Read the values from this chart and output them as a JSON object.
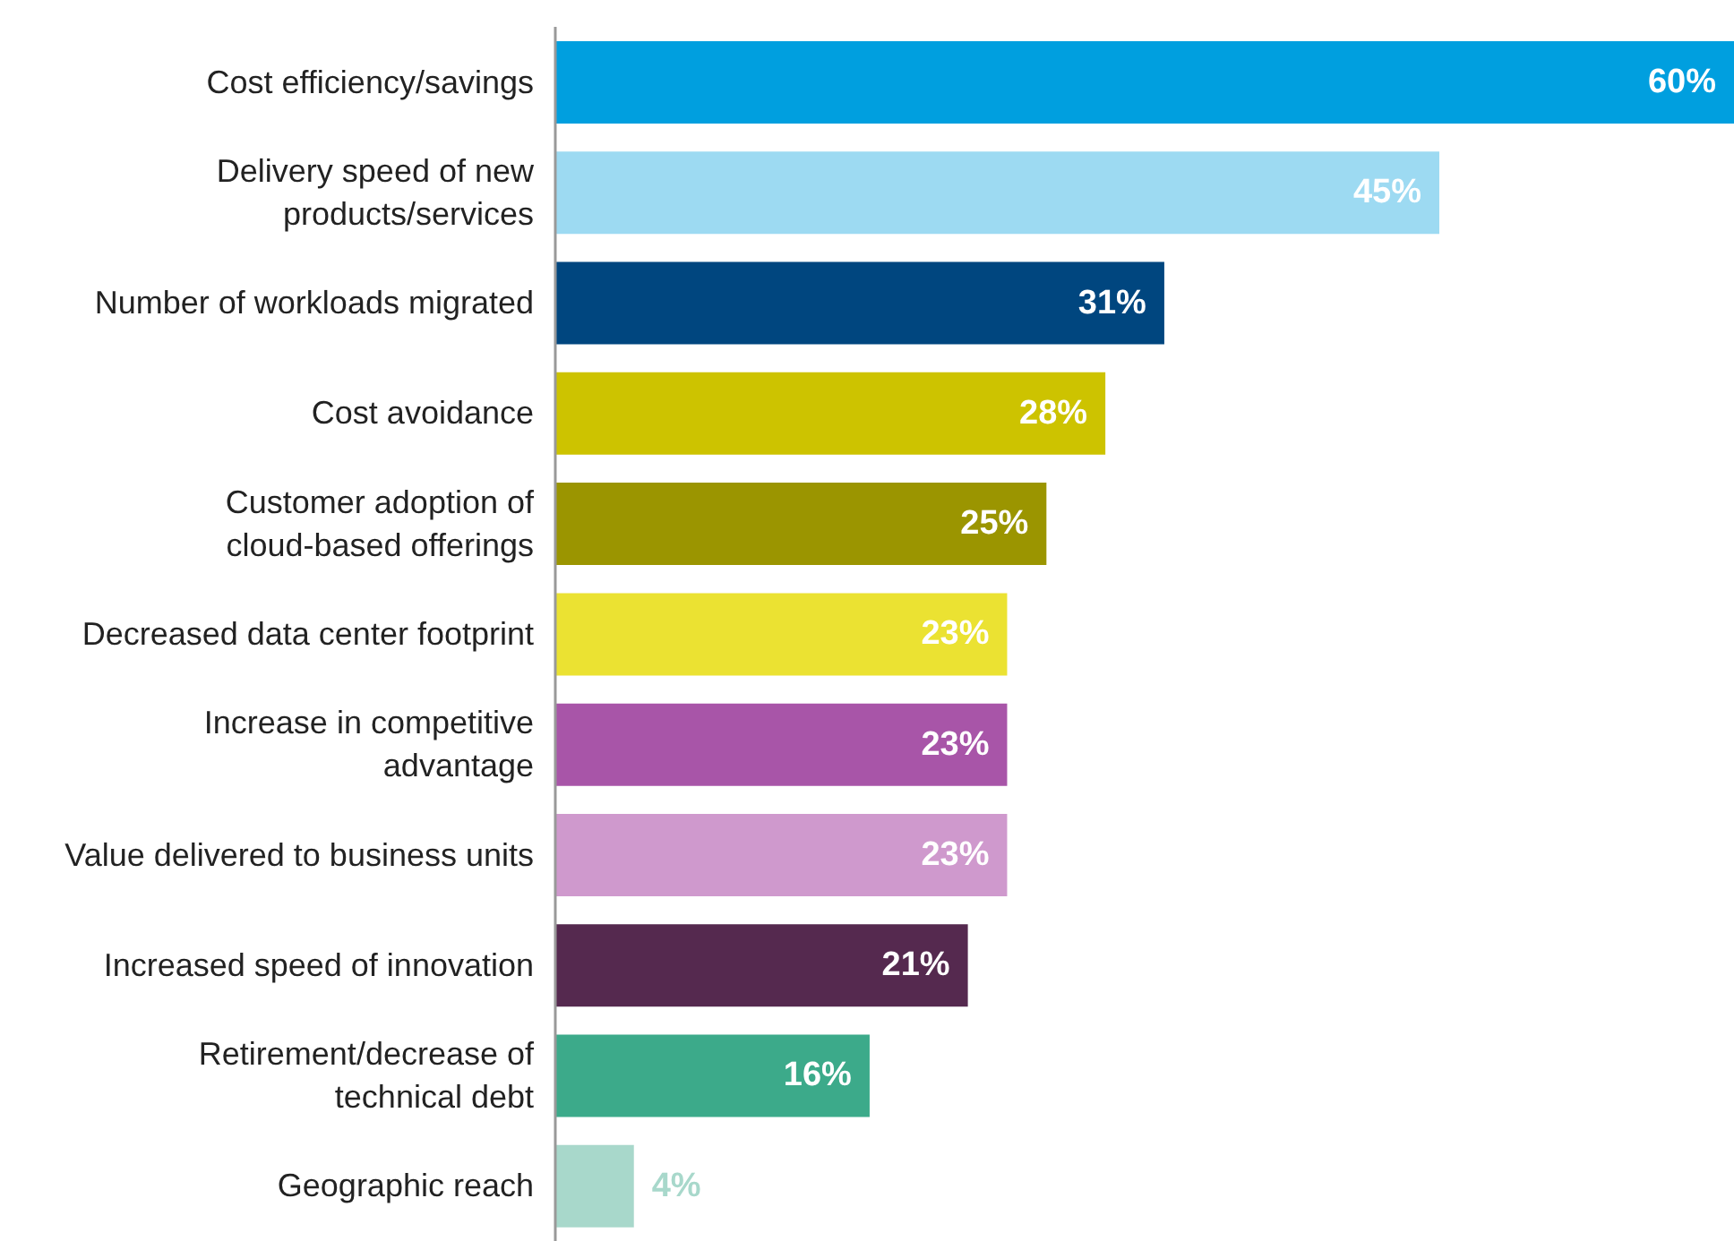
{
  "chart_data": {
    "type": "bar",
    "orientation": "horizontal",
    "categories": [
      "Cost efficiency/savings",
      "Delivery speed of new\nproducts/services",
      "Number of workloads migrated",
      "Cost avoidance",
      "Customer adoption of\ncloud-based offerings",
      "Decreased data center footprint",
      "Increase in competitive\nadvantage",
      "Value delivered to business units",
      "Increased speed of innovation",
      "Retirement/decrease of\ntechnical debt",
      "Geographic reach"
    ],
    "values": [
      60,
      45,
      31,
      28,
      25,
      23,
      23,
      23,
      21,
      16,
      4
    ],
    "value_labels": [
      "60%",
      "45%",
      "31%",
      "28%",
      "25%",
      "23%",
      "23%",
      "23%",
      "21%",
      "16%",
      "4%"
    ],
    "colors": [
      "#009fdf",
      "#9ddaf2",
      "#00467f",
      "#cdc300",
      "#9b9500",
      "#ebe232",
      "#a855a8",
      "#cf99cd",
      "#55294f",
      "#3caa8a",
      "#a8d8cb"
    ]
  }
}
